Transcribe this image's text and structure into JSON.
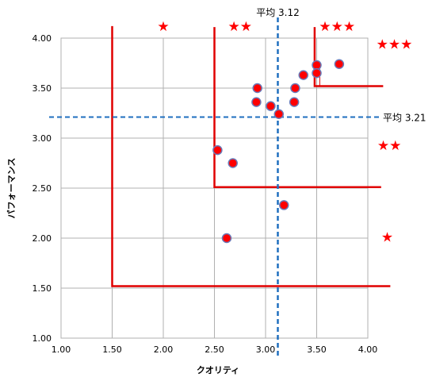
{
  "chart_data": {
    "type": "scatter",
    "xlabel": "クオリティ",
    "ylabel": "パフォーマンス",
    "xlim": [
      1.0,
      4.0
    ],
    "ylim": [
      1.0,
      4.0
    ],
    "xticks": [
      "1.00",
      "1.50",
      "2.00",
      "2.50",
      "3.00",
      "3.50",
      "4.00"
    ],
    "yticks": [
      "1.00",
      "1.50",
      "2.00",
      "2.50",
      "3.00",
      "3.50",
      "4.00"
    ],
    "grid": true,
    "points": [
      {
        "x": 2.53,
        "y": 2.88
      },
      {
        "x": 2.68,
        "y": 2.75
      },
      {
        "x": 2.62,
        "y": 2.0
      },
      {
        "x": 2.92,
        "y": 3.5
      },
      {
        "x": 2.91,
        "y": 3.36
      },
      {
        "x": 3.05,
        "y": 3.32
      },
      {
        "x": 3.13,
        "y": 3.24
      },
      {
        "x": 3.18,
        "y": 2.33
      },
      {
        "x": 3.28,
        "y": 3.36
      },
      {
        "x": 3.29,
        "y": 3.5
      },
      {
        "x": 3.37,
        "y": 3.63
      },
      {
        "x": 3.5,
        "y": 3.73
      },
      {
        "x": 3.5,
        "y": 3.65
      },
      {
        "x": 3.72,
        "y": 3.74
      }
    ],
    "averages": {
      "x_value": 3.12,
      "x_label": "平均 3.12",
      "y_value": 3.21,
      "y_label": "平均 3.21"
    },
    "tier_lines": [
      {
        "corner_x": 1.5,
        "corner_y": 1.52,
        "x_end": 4.22,
        "y_top": 4.12
      },
      {
        "corner_x": 2.5,
        "corner_y": 2.51,
        "x_end": 4.13,
        "y_top": 4.11
      },
      {
        "corner_x": 3.48,
        "corner_y": 3.52,
        "x_end": 4.15,
        "y_top": 4.11
      }
    ],
    "star_annotations": [
      {
        "text": "★",
        "x": 2.0,
        "y": 4.12
      },
      {
        "text": "★★",
        "x": 2.75,
        "y": 4.12
      },
      {
        "text": "★★★",
        "x": 3.7,
        "y": 4.12
      },
      {
        "text": "★★★",
        "x": 4.26,
        "y": 3.94
      },
      {
        "text": "★★",
        "x": 4.21,
        "y": 2.93
      },
      {
        "text": "★",
        "x": 4.19,
        "y": 2.01
      }
    ],
    "colors": {
      "point_fill": "#ff0000",
      "point_stroke": "#6a7ab8",
      "tier_line": "#e00000",
      "average_line": "#1f6fbf",
      "grid": "#b0b0b0",
      "star": "#ff0000"
    }
  }
}
